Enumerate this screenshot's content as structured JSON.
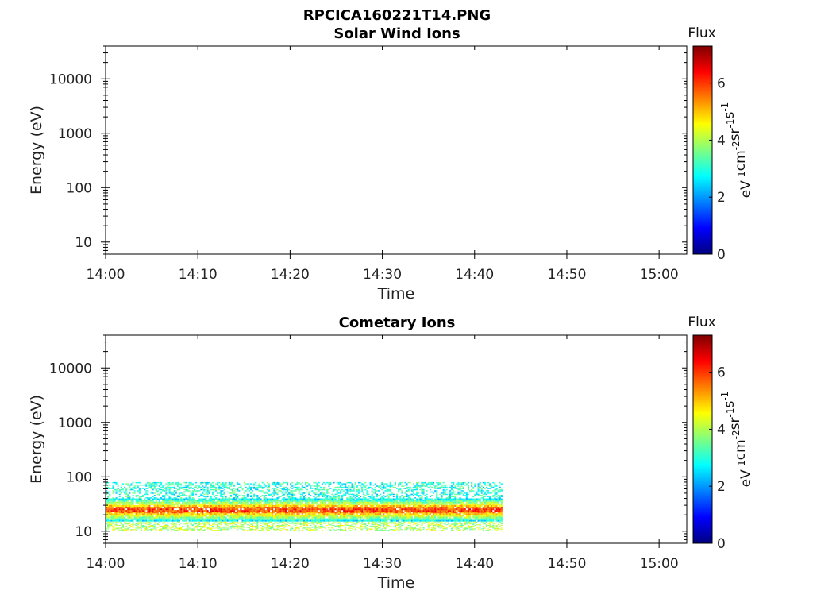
{
  "figure_title": "RPCICA160221T14.PNG",
  "chart_data": [
    {
      "type": "heatmap",
      "title": "Solar Wind Ions",
      "xlabel": "Time",
      "ylabel": "Energy (eV)",
      "x_ticks": [
        "14:00",
        "14:10",
        "14:20",
        "14:30",
        "14:40",
        "14:50",
        "15:00"
      ],
      "y_ticks": [
        "10",
        "100",
        "1000",
        "10000"
      ],
      "y_scale": "log",
      "ylim": [
        6,
        40000
      ],
      "xlim": [
        "14:00",
        "15:03"
      ],
      "colorbar": {
        "label": "Flux",
        "unit_label": "eV^-1 cm^-2 sr^-1 s^-1",
        "ticks": [
          "0",
          "2",
          "4",
          "6"
        ],
        "range": [
          0,
          7.3
        ]
      },
      "data": []
    },
    {
      "type": "heatmap",
      "title": "Cometary Ions",
      "xlabel": "Time",
      "ylabel": "Energy (eV)",
      "x_ticks": [
        "14:00",
        "14:10",
        "14:20",
        "14:30",
        "14:40",
        "14:50",
        "15:00"
      ],
      "y_ticks": [
        "10",
        "100",
        "1000",
        "10000"
      ],
      "y_scale": "log",
      "ylim": [
        6,
        40000
      ],
      "xlim": [
        "14:00",
        "15:03"
      ],
      "colorbar": {
        "label": "Flux",
        "unit_label": "eV^-1 cm^-2 sr^-1 s^-1",
        "ticks": [
          "0",
          "2",
          "4",
          "6"
        ],
        "range": [
          0,
          7.3
        ]
      },
      "data": [
        {
          "time_range": [
            "14:00",
            "14:43"
          ],
          "energy_eV": [
            15,
            40
          ],
          "flux_peak": 6.8,
          "note_level": "core"
        },
        {
          "time_range": [
            "14:00",
            "14:43"
          ],
          "energy_eV": [
            40,
            80
          ],
          "flux": 3.0
        },
        {
          "time_range": [
            "14:00",
            "14:43"
          ],
          "energy_eV": [
            10,
            15
          ],
          "flux": 4.0
        }
      ]
    }
  ]
}
